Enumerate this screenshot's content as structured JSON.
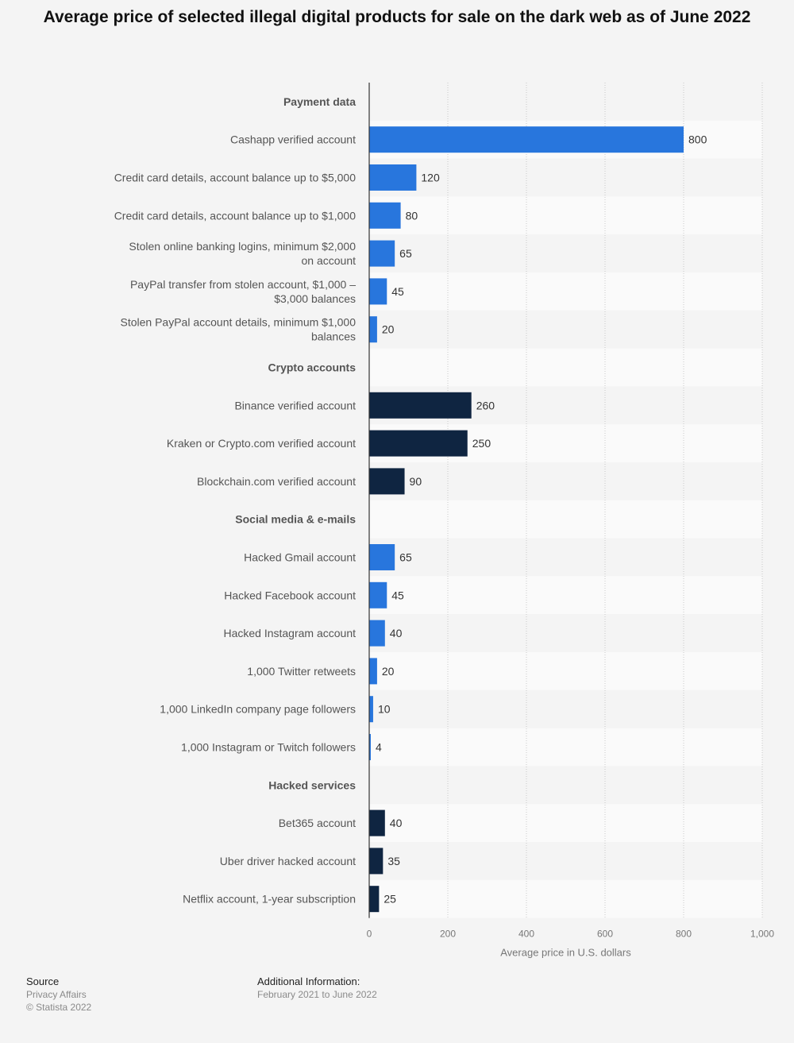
{
  "chart_data": {
    "type": "bar",
    "orientation": "horizontal",
    "title": "Average price of selected illegal digital products for sale on the dark web as of June 2022",
    "xlabel": "Average price in U.S. dollars",
    "ylabel": "",
    "xlim": [
      0,
      1000
    ],
    "xticks": [
      "0",
      "200",
      "400",
      "600",
      "800",
      "1,000"
    ],
    "xtick_values": [
      0,
      200,
      400,
      600,
      800,
      1000
    ],
    "grid": true,
    "colors": {
      "group_a": "#2876dd",
      "group_b": "#0f2541"
    },
    "rows": [
      {
        "label": "Payment data",
        "header": true
      },
      {
        "label": "Cashapp verified account",
        "value": 800,
        "display": "800",
        "color": "group_a"
      },
      {
        "label": "Credit card details, account balance up to $5,000",
        "value": 120,
        "display": "120",
        "color": "group_a"
      },
      {
        "label": "Credit card details, account balance up to $1,000",
        "value": 80,
        "display": "80",
        "color": "group_a"
      },
      {
        "label": "Stolen online banking logins, minimum $2,000 on account",
        "lines": [
          "Stolen online banking logins, minimum $2,000",
          "on account"
        ],
        "value": 65,
        "display": "65",
        "color": "group_a"
      },
      {
        "label": "PayPal transfer from stolen account, $1,000 – $3,000 balances",
        "lines": [
          "PayPal transfer from stolen account, $1,000 –",
          "$3,000 balances"
        ],
        "value": 45,
        "display": "45",
        "color": "group_a"
      },
      {
        "label": "Stolen PayPal account details, minimum $1,000 balances",
        "lines": [
          "Stolen PayPal account details, minimum $1,000",
          "balances"
        ],
        "value": 20,
        "display": "20",
        "color": "group_a"
      },
      {
        "label": "Crypto accounts",
        "header": true
      },
      {
        "label": "Binance verified account",
        "value": 260,
        "display": "260",
        "color": "group_b"
      },
      {
        "label": "Kraken or Crypto.com verified account",
        "value": 250,
        "display": "250",
        "color": "group_b"
      },
      {
        "label": "Blockchain.com verified account",
        "value": 90,
        "display": "90",
        "color": "group_b"
      },
      {
        "label": "Social media & e-mails",
        "header": true
      },
      {
        "label": "Hacked Gmail account",
        "value": 65,
        "display": "65",
        "color": "group_a"
      },
      {
        "label": "Hacked Facebook account",
        "value": 45,
        "display": "45",
        "color": "group_a"
      },
      {
        "label": "Hacked Instagram account",
        "value": 40,
        "display": "40",
        "color": "group_a"
      },
      {
        "label": "1,000 Twitter retweets",
        "value": 20,
        "display": "20",
        "color": "group_a"
      },
      {
        "label": "1,000 LinkedIn company page followers",
        "value": 10,
        "display": "10",
        "color": "group_a"
      },
      {
        "label": "1,000 Instagram or Twitch followers",
        "value": 4,
        "display": "4",
        "color": "group_a"
      },
      {
        "label": "Hacked services",
        "header": true
      },
      {
        "label": "Bet365 account",
        "value": 40,
        "display": "40",
        "color": "group_b"
      },
      {
        "label": "Uber driver hacked account",
        "value": 35,
        "display": "35",
        "color": "group_b"
      },
      {
        "label": "Netflix account, 1-year subscription",
        "value": 25,
        "display": "25",
        "color": "group_b"
      }
    ]
  },
  "footer": {
    "source_heading": "Source",
    "source_name": "Privacy Affairs",
    "copyright": "© Statista 2022",
    "info_heading": "Additional Information:",
    "info_text": "February 2021 to June 2022"
  }
}
